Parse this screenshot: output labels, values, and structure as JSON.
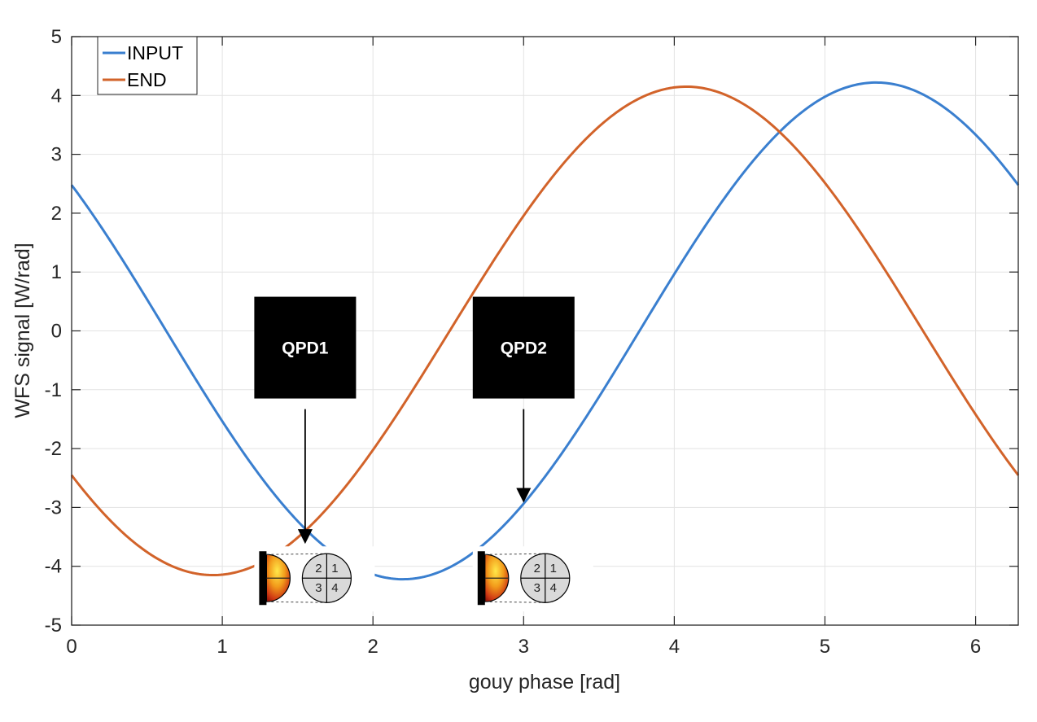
{
  "chart_data": {
    "type": "line",
    "xlabel": "gouy phase [rad]",
    "ylabel": "WFS signal [W/rad]",
    "xlim": [
      0,
      6.2832
    ],
    "ylim": [
      -5,
      5
    ],
    "xticks": [
      0,
      1,
      2,
      3,
      4,
      5,
      6
    ],
    "yticks": [
      -5,
      -4,
      -3,
      -2,
      -1,
      0,
      1,
      2,
      3,
      4,
      5
    ],
    "grid": true,
    "legend_position": "top-left",
    "series": [
      {
        "name": "INPUT",
        "color": "#3a7fcf",
        "amplitude": 4.22,
        "peak_phase": 5.34,
        "x": [
          0,
          0.5,
          1.0,
          1.5,
          2.0,
          2.2,
          2.5,
          3.0,
          3.5,
          4.0,
          4.5,
          5.0,
          5.34,
          5.5,
          6.0,
          6.28
        ],
        "y": [
          2.42,
          0.49,
          -1.57,
          -3.28,
          -4.14,
          -4.22,
          -4.03,
          -2.91,
          -1.12,
          0.95,
          2.84,
          3.98,
          4.22,
          4.16,
          3.3,
          2.42
        ]
      },
      {
        "name": "END",
        "color": "#d2632a",
        "amplitude": 4.15,
        "peak_phase": 4.08,
        "x": [
          0,
          0.5,
          0.94,
          1.0,
          1.5,
          2.0,
          2.5,
          3.0,
          3.5,
          4.0,
          4.08,
          4.5,
          5.0,
          5.5,
          6.0,
          6.28
        ],
        "y": [
          -2.45,
          -3.81,
          -4.15,
          -4.14,
          -3.44,
          -1.92,
          0.09,
          2.06,
          3.5,
          4.13,
          4.15,
          3.79,
          2.43,
          0.54,
          -1.45,
          -2.45
        ]
      }
    ],
    "annotations": [
      {
        "label": "QPD1",
        "x": 1.55,
        "y": -3.55,
        "quadrants": [
          "2",
          "1",
          "3",
          "4"
        ]
      },
      {
        "label": "QPD2",
        "x": 3.0,
        "y": -2.85,
        "quadrants": [
          "2",
          "1",
          "3",
          "4"
        ]
      }
    ]
  }
}
